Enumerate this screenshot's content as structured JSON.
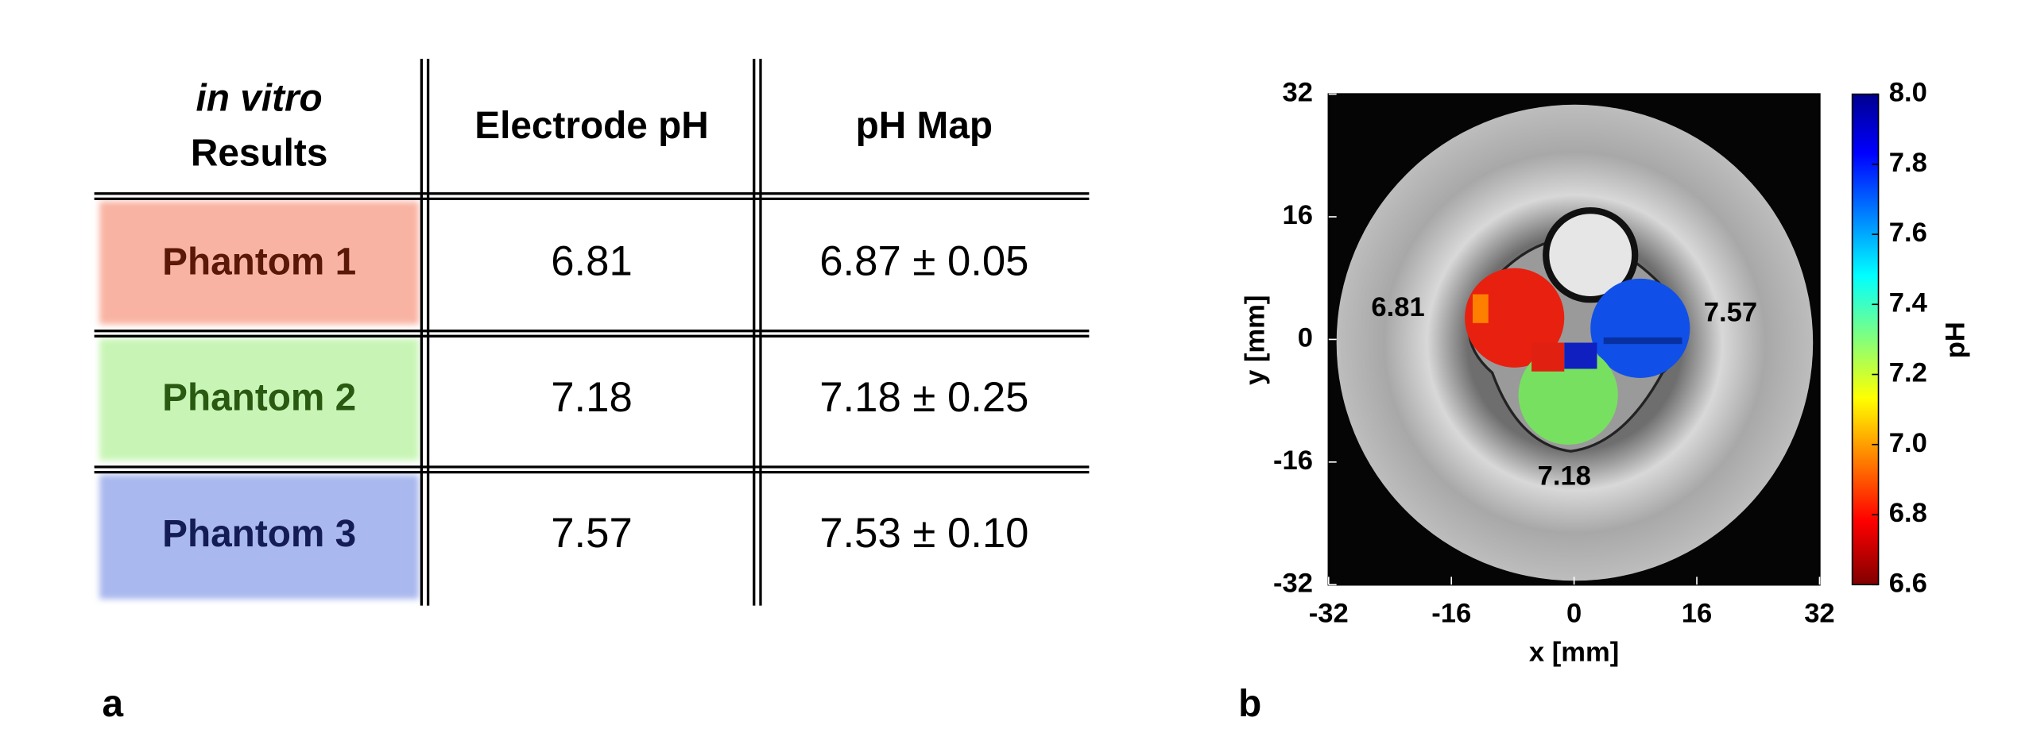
{
  "table": {
    "header": [
      [
        "in vitro",
        "Results"
      ],
      [
        "Electrode pH"
      ],
      [
        "pH Map"
      ]
    ],
    "rows": [
      [
        "Phantom 1",
        "6.81",
        "6.87 ± 0.05"
      ],
      [
        "Phantom 2",
        "7.18",
        "7.18 ± 0.25"
      ],
      [
        "Phantom 3",
        "7.57",
        "7.53 ± 0.10"
      ]
    ]
  },
  "panel_labels": [
    "a",
    "b"
  ],
  "figure": {
    "xlabel": "x [mm]",
    "ylabel": "y [mm]",
    "xlim": [
      -32,
      32
    ],
    "ylim": [
      -32,
      32
    ],
    "xticks": [
      -32,
      -16,
      0,
      16,
      32
    ],
    "yticks": [
      -32,
      -16,
      0,
      16,
      32
    ],
    "annotations": [
      "6.81",
      "7.57",
      "7.18"
    ],
    "colorbar": {
      "label": "pH",
      "lim": [
        6.6,
        8.0
      ],
      "ticks": [
        6.6,
        6.8,
        {
          "value": 7,
          "label": "7.0"
        },
        7.2,
        7.4,
        7.6,
        7.8,
        {
          "value": 8,
          "label": "8.0"
        }
      ]
    }
  }
}
